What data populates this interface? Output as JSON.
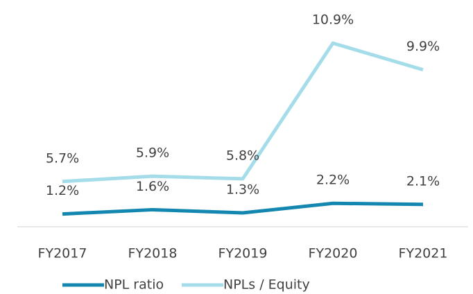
{
  "chart_data": {
    "type": "line",
    "categories": [
      "FY2017",
      "FY2018",
      "FY2019",
      "FY2020",
      "FY2021"
    ],
    "series": [
      {
        "name": "NPL ratio",
        "color": "#1487b0",
        "axis": "y2",
        "values": [
          1.2,
          1.6,
          1.3,
          2.2,
          2.1
        ],
        "value_labels": [
          "1.2%",
          "1.6%",
          "1.3%",
          "2.2%",
          "2.1%"
        ]
      },
      {
        "name": "NPLs / Equity",
        "color": "#a4dde9",
        "values": [
          5.7,
          5.9,
          5.8,
          10.9,
          9.9
        ],
        "value_labels": [
          "5.7%",
          "5.9%",
          "5.8%",
          "10.9%",
          "9.9%"
        ]
      }
    ],
    "ylim": [
      4,
      12
    ],
    "y2lim": [
      0,
      20
    ],
    "legend": "bottom"
  }
}
